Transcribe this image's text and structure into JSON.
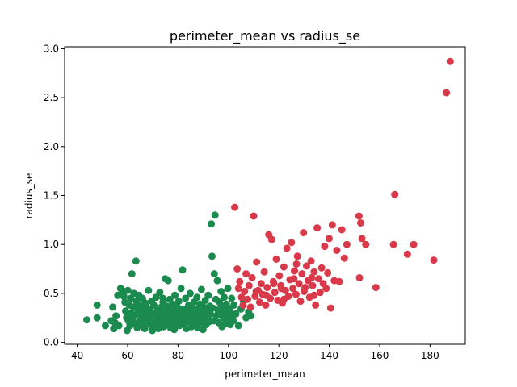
{
  "chart_data": {
    "type": "scatter",
    "title": "perimeter_mean vs radius_se",
    "xlabel": "perimeter_mean",
    "ylabel": "radius_se",
    "xlim": [
      35,
      194
    ],
    "ylim": [
      -0.02,
      3.02
    ],
    "xticks": [
      40,
      60,
      80,
      100,
      120,
      140,
      160,
      180
    ],
    "yticks": [
      0.0,
      0.5,
      1.0,
      1.5,
      2.0,
      2.5,
      3.0
    ],
    "ytick_labels": [
      "0.0",
      "0.5",
      "1.0",
      "1.5",
      "2.0",
      "2.5",
      "3.0"
    ],
    "grid": false,
    "series": [
      {
        "color": "#1a8a4e",
        "points": [
          [
            43.8,
            0.23
          ],
          [
            47.9,
            0.38
          ],
          [
            47.9,
            0.25
          ],
          [
            51.2,
            0.17
          ],
          [
            53.5,
            0.22
          ],
          [
            54.1,
            0.36
          ],
          [
            54.5,
            0.14
          ],
          [
            55.0,
            0.2
          ],
          [
            55.4,
            0.27
          ],
          [
            56.1,
            0.48
          ],
          [
            56.5,
            0.17
          ],
          [
            57.2,
            0.55
          ],
          [
            57.9,
            0.53
          ],
          [
            58.5,
            0.47
          ],
          [
            58.9,
            0.41
          ],
          [
            59.2,
            0.32
          ],
          [
            59.6,
            0.25
          ],
          [
            59.8,
            0.12
          ],
          [
            60.1,
            0.53
          ],
          [
            60.3,
            0.22
          ],
          [
            60.6,
            0.38
          ],
          [
            60.9,
            0.17
          ],
          [
            61.2,
            0.45
          ],
          [
            61.4,
            0.3
          ],
          [
            61.7,
            0.7
          ],
          [
            61.9,
            0.24
          ],
          [
            62.2,
            0.36
          ],
          [
            62.5,
            0.5
          ],
          [
            62.7,
            0.19
          ],
          [
            63.0,
            0.28
          ],
          [
            63.3,
            0.83
          ],
          [
            63.5,
            0.42
          ],
          [
            63.8,
            0.15
          ],
          [
            64.1,
            0.33
          ],
          [
            64.4,
            0.48
          ],
          [
            64.7,
            0.22
          ],
          [
            65.0,
            0.29
          ],
          [
            65.3,
            0.37
          ],
          [
            65.6,
            0.18
          ],
          [
            65.9,
            0.45
          ],
          [
            66.2,
            0.25
          ],
          [
            66.5,
            0.31
          ],
          [
            66.8,
            0.14
          ],
          [
            67.1,
            0.4
          ],
          [
            67.4,
            0.21
          ],
          [
            67.7,
            0.35
          ],
          [
            68.0,
            0.27
          ],
          [
            68.3,
            0.53
          ],
          [
            68.6,
            0.19
          ],
          [
            68.9,
            0.33
          ],
          [
            69.2,
            0.24
          ],
          [
            69.5,
            0.42
          ],
          [
            69.8,
            0.12
          ],
          [
            70.1,
            0.3
          ],
          [
            70.4,
            0.38
          ],
          [
            70.7,
            0.17
          ],
          [
            71.0,
            0.26
          ],
          [
            71.3,
            0.46
          ],
          [
            71.6,
            0.22
          ],
          [
            71.9,
            0.34
          ],
          [
            72.2,
            0.14
          ],
          [
            72.5,
            0.29
          ],
          [
            72.8,
            0.51
          ],
          [
            73.1,
            0.2
          ],
          [
            73.4,
            0.36
          ],
          [
            73.7,
            0.25
          ],
          [
            74.0,
            0.41
          ],
          [
            74.3,
            0.16
          ],
          [
            74.6,
            0.31
          ],
          [
            74.9,
            0.65
          ],
          [
            75.2,
            0.23
          ],
          [
            75.5,
            0.37
          ],
          [
            75.8,
            0.19
          ],
          [
            76.1,
            0.63
          ],
          [
            76.4,
            0.28
          ],
          [
            76.7,
            0.44
          ],
          [
            77.0,
            0.15
          ],
          [
            77.3,
            0.33
          ],
          [
            77.6,
            0.22
          ],
          [
            77.9,
            0.39
          ],
          [
            78.2,
            0.27
          ],
          [
            78.5,
            0.13
          ],
          [
            78.8,
            0.48
          ],
          [
            79.1,
            0.31
          ],
          [
            79.4,
            0.2
          ],
          [
            79.7,
            0.36
          ],
          [
            80.0,
            0.25
          ],
          [
            80.3,
            0.42
          ],
          [
            80.6,
            0.17
          ],
          [
            80.9,
            0.3
          ],
          [
            81.2,
            0.55
          ],
          [
            81.5,
            0.23
          ],
          [
            81.8,
            0.74
          ],
          [
            82.1,
            0.34
          ],
          [
            82.4,
            0.19
          ],
          [
            82.7,
            0.28
          ],
          [
            83.0,
            0.45
          ],
          [
            83.3,
            0.14
          ],
          [
            83.6,
            0.32
          ],
          [
            83.9,
            0.24
          ],
          [
            84.2,
            0.38
          ],
          [
            84.5,
            0.21
          ],
          [
            84.8,
            0.5
          ],
          [
            85.1,
            0.29
          ],
          [
            85.4,
            0.16
          ],
          [
            85.7,
            0.35
          ],
          [
            86.0,
            0.26
          ],
          [
            86.3,
            0.41
          ],
          [
            86.6,
            0.18
          ],
          [
            86.9,
            0.31
          ],
          [
            87.2,
            0.23
          ],
          [
            87.5,
            0.46
          ],
          [
            87.8,
            0.15
          ],
          [
            88.1,
            0.34
          ],
          [
            88.4,
            0.27
          ],
          [
            88.7,
            0.39
          ],
          [
            89.0,
            0.2
          ],
          [
            89.3,
            0.54
          ],
          [
            89.6,
            0.3
          ],
          [
            89.9,
            0.13
          ],
          [
            90.2,
            0.36
          ],
          [
            90.5,
            0.24
          ],
          [
            90.8,
            0.43
          ],
          [
            91.1,
            0.18
          ],
          [
            91.4,
            0.32
          ],
          [
            91.7,
            0.26
          ],
          [
            92.0,
            0.48
          ],
          [
            92.3,
            0.21
          ],
          [
            92.6,
            0.37
          ],
          [
            92.9,
            0.29
          ],
          [
            93.2,
            1.21
          ],
          [
            93.5,
            0.88
          ],
          [
            93.8,
            0.35
          ],
          [
            94.1,
            0.22
          ],
          [
            94.4,
            0.7
          ],
          [
            94.7,
            1.3
          ],
          [
            95.0,
            0.44
          ],
          [
            95.3,
            0.27
          ],
          [
            95.6,
            0.63
          ],
          [
            95.9,
            0.33
          ],
          [
            96.2,
            0.2
          ],
          [
            96.5,
            0.41
          ],
          [
            96.8,
            0.28
          ],
          [
            97.1,
            0.52
          ],
          [
            97.4,
            0.16
          ],
          [
            97.7,
            0.36
          ],
          [
            98.0,
            0.25
          ],
          [
            98.3,
            0.46
          ],
          [
            98.6,
            0.31
          ],
          [
            98.9,
            0.19
          ],
          [
            99.2,
            0.39
          ],
          [
            99.5,
            0.27
          ],
          [
            99.8,
            0.55
          ],
          [
            100.1,
            0.23
          ],
          [
            100.4,
            0.34
          ],
          [
            100.7,
            0.18
          ],
          [
            101.0,
            0.3
          ],
          [
            101.3,
            0.45
          ],
          [
            101.6,
            0.26
          ],
          [
            101.9,
            0.22
          ],
          [
            102.2,
            0.38
          ],
          [
            103.0,
            0.29
          ],
          [
            104.0,
            0.17
          ],
          [
            105.0,
            0.34
          ],
          [
            106.0,
            0.42
          ],
          [
            107.0,
            0.25
          ],
          [
            108.0,
            0.31
          ],
          [
            109.0,
            0.27
          ],
          [
            66.0,
            0.2
          ],
          [
            70.0,
            0.15
          ],
          [
            74.0,
            0.25
          ],
          [
            78.0,
            0.3
          ],
          [
            82.0,
            0.22
          ],
          [
            86.0,
            0.34
          ],
          [
            90.0,
            0.28
          ],
          [
            76.0,
            0.35
          ],
          [
            84.0,
            0.3
          ],
          [
            88.0,
            0.24
          ],
          [
            72.0,
            0.3
          ],
          [
            68.0,
            0.26
          ],
          [
            80.0,
            0.18
          ],
          [
            92.0,
            0.34
          ],
          [
            96.0,
            0.3
          ],
          [
            64.0,
            0.38
          ],
          [
            60.0,
            0.28
          ],
          [
            74.0,
            0.45
          ],
          [
            86.0,
            0.22
          ],
          [
            78.0,
            0.2
          ]
        ]
      },
      {
        "color": "#d83a4a",
        "points": [
          [
            102.5,
            1.38
          ],
          [
            103.5,
            0.75
          ],
          [
            104.0,
            0.55
          ],
          [
            104.5,
            0.62
          ],
          [
            105.2,
            0.46
          ],
          [
            105.8,
            0.38
          ],
          [
            106.4,
            0.52
          ],
          [
            107.0,
            0.7
          ],
          [
            107.6,
            0.44
          ],
          [
            108.2,
            0.58
          ],
          [
            108.8,
            0.36
          ],
          [
            109.4,
            0.66
          ],
          [
            110.0,
            1.29
          ],
          [
            110.6,
            0.47
          ],
          [
            111.2,
            0.82
          ],
          [
            111.8,
            0.53
          ],
          [
            112.4,
            0.41
          ],
          [
            113.0,
            0.6
          ],
          [
            113.6,
            0.49
          ],
          [
            114.2,
            0.72
          ],
          [
            114.8,
            0.38
          ],
          [
            115.4,
            0.56
          ],
          [
            116.0,
            1.1
          ],
          [
            116.6,
            0.45
          ],
          [
            117.2,
            1.05
          ],
          [
            117.8,
            0.62
          ],
          [
            118.4,
            0.51
          ],
          [
            119.0,
            0.85
          ],
          [
            119.6,
            0.43
          ],
          [
            120.2,
            0.68
          ],
          [
            120.8,
            0.58
          ],
          [
            121.4,
            0.4
          ],
          [
            122.0,
            0.77
          ],
          [
            122.6,
            0.53
          ],
          [
            123.2,
            0.96
          ],
          [
            123.8,
            0.47
          ],
          [
            124.4,
            0.64
          ],
          [
            125.0,
            1.02
          ],
          [
            125.6,
            0.55
          ],
          [
            126.2,
            0.73
          ],
          [
            126.8,
            0.49
          ],
          [
            127.4,
            0.88
          ],
          [
            128.0,
            0.6
          ],
          [
            128.6,
            0.42
          ],
          [
            129.2,
            0.7
          ],
          [
            129.8,
            1.12
          ],
          [
            130.4,
            0.56
          ],
          [
            131.0,
            0.78
          ],
          [
            131.6,
            0.63
          ],
          [
            132.2,
            0.46
          ],
          [
            132.8,
            0.83
          ],
          [
            133.4,
            0.58
          ],
          [
            134.0,
            0.72
          ],
          [
            134.6,
            0.38
          ],
          [
            135.2,
            1.17
          ],
          [
            135.8,
            0.65
          ],
          [
            136.4,
            0.51
          ],
          [
            137.0,
            0.76
          ],
          [
            137.6,
            0.6
          ],
          [
            138.2,
            0.98
          ],
          [
            138.8,
            0.55
          ],
          [
            139.4,
            0.71
          ],
          [
            140.0,
            1.06
          ],
          [
            140.6,
            0.35
          ],
          [
            141.2,
            1.2
          ],
          [
            142.0,
            0.63
          ],
          [
            143.0,
            0.94
          ],
          [
            144.0,
            0.62
          ],
          [
            145.0,
            1.15
          ],
          [
            146.0,
            0.86
          ],
          [
            147.0,
            1.0
          ],
          [
            151.8,
            1.29
          ],
          [
            152.0,
            0.66
          ],
          [
            152.5,
            1.22
          ],
          [
            153.0,
            1.06
          ],
          [
            154.5,
            1.0
          ],
          [
            158.5,
            0.56
          ],
          [
            165.5,
            1.0
          ],
          [
            166.0,
            1.51
          ],
          [
            171.0,
            0.9
          ],
          [
            173.5,
            1.0
          ],
          [
            181.5,
            0.84
          ],
          [
            186.5,
            2.55
          ],
          [
            188.0,
            2.87
          ],
          [
            118.0,
            0.6
          ],
          [
            122.0,
            0.44
          ],
          [
            126.0,
            0.65
          ],
          [
            130.0,
            0.52
          ],
          [
            134.0,
            0.48
          ],
          [
            127.0,
            0.8
          ],
          [
            121.0,
            0.55
          ],
          [
            133.0,
            0.66
          ],
          [
            115.0,
            0.48
          ],
          [
            111.0,
            0.52
          ]
        ]
      }
    ]
  }
}
